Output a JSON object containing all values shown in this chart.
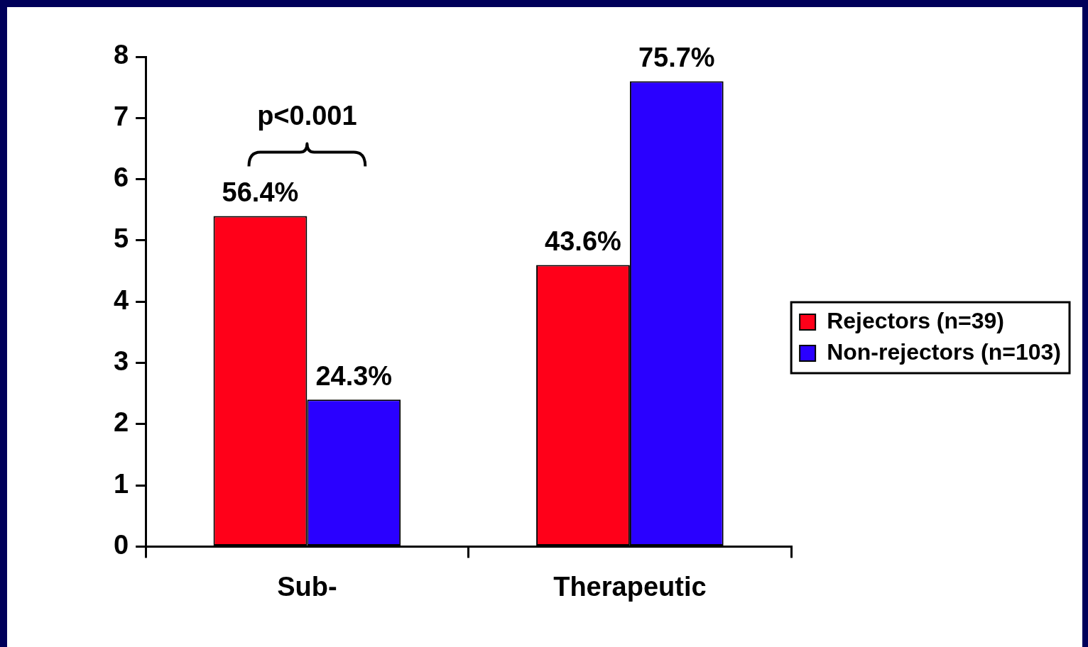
{
  "chart_data": {
    "type": "bar",
    "categories": [
      "Sub-",
      "Therapeutic"
    ],
    "series": [
      {
        "name": "Rejectors (n=39)",
        "color": "#ff0019",
        "values": [
          5.4,
          4.6
        ]
      },
      {
        "name": "Non-rejectors (n=103)",
        "color": "#2a00ff",
        "values": [
          2.4,
          7.6
        ]
      }
    ],
    "ylim": [
      0,
      8
    ],
    "yticks": [
      0,
      1,
      2,
      3,
      4,
      5,
      6,
      7,
      8
    ],
    "grid": false,
    "legend": "right",
    "annotations": [
      "p<0.001",
      {
        "text": "56.4%",
        "x": "Sub-",
        "y": 5.4
      },
      {
        "text": "24.3%",
        "x": "Sub-",
        "y": 2.4
      },
      {
        "text": "43.6%",
        "x": "Therapeutic",
        "y": 4.6
      },
      {
        "text": "75.7%",
        "x": "Therapeutic",
        "y": 7.6
      }
    ]
  }
}
